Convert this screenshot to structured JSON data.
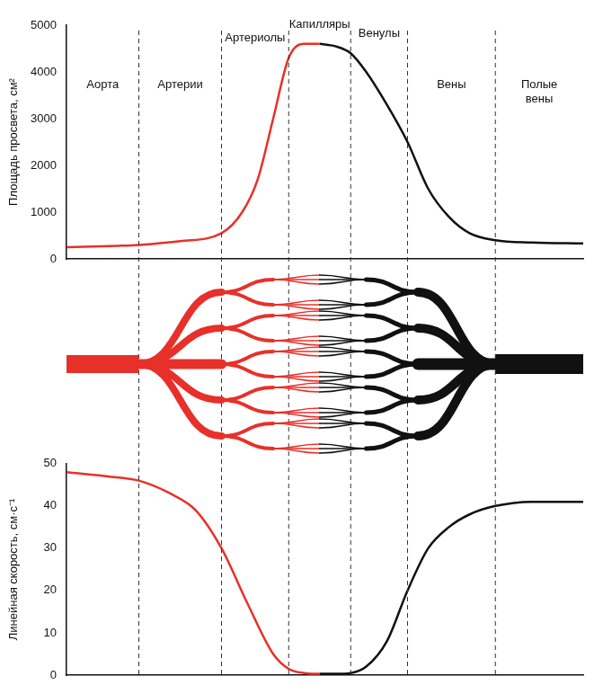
{
  "chart_data": [
    {
      "type": "line",
      "y_label": "Площадь просвета, см²",
      "xlim": [
        0,
        100
      ],
      "ylim": [
        0,
        5000
      ],
      "yticks": [
        0,
        1000,
        2000,
        3000,
        4000,
        5000
      ],
      "grid": false,
      "tick_labels": "y",
      "series": [
        {
          "color": "#e8302a",
          "x": [
            0,
            10,
            14,
            22,
            30,
            34,
            37,
            40,
            43,
            46,
            49
          ],
          "values": [
            250,
            280,
            300,
            380,
            550,
            1000,
            1700,
            3000,
            4300,
            4600,
            4600
          ]
        },
        {
          "color": "#111111",
          "x": [
            49,
            52,
            55,
            58,
            62,
            66,
            70,
            74,
            78,
            83,
            90,
            100
          ],
          "values": [
            4600,
            4550,
            4400,
            4000,
            3300,
            2500,
            1500,
            900,
            550,
            400,
            350,
            330
          ]
        }
      ]
    },
    {
      "type": "line",
      "y_label": "Линейная скорость, см·с⁻¹",
      "xlim": [
        0,
        100
      ],
      "ylim": [
        0,
        50
      ],
      "yticks": [
        0,
        10,
        20,
        30,
        40,
        50
      ],
      "grid": false,
      "tick_labels": "y",
      "series": [
        {
          "color": "#e8302a",
          "x": [
            0,
            8,
            14,
            20,
            25,
            30,
            35,
            40,
            43,
            46,
            49
          ],
          "values": [
            48,
            47,
            46,
            43,
            39,
            30,
            17,
            5,
            1.5,
            0.5,
            0.3
          ]
        },
        {
          "color": "#111111",
          "x": [
            49,
            52,
            55,
            58,
            62,
            66,
            70,
            74,
            78,
            83,
            90,
            100
          ],
          "values": [
            0.3,
            0.3,
            0.5,
            2,
            8,
            20,
            30,
            35,
            38,
            40,
            41,
            41
          ]
        }
      ]
    }
  ],
  "segments": [
    {
      "label": "Аорта",
      "start": 0,
      "end": 14
    },
    {
      "label": "Артерии",
      "start": 14,
      "end": 30
    },
    {
      "label": "Артериолы",
      "start": 30,
      "end": 43
    },
    {
      "label": "Капилляры",
      "start": 43,
      "end": 55
    },
    {
      "label": "Венулы",
      "start": 55,
      "end": 66
    },
    {
      "label": "Вены",
      "start": 66,
      "end": 83
    },
    {
      "label": "Полые вены",
      "start": 83,
      "end": 100
    }
  ]
}
